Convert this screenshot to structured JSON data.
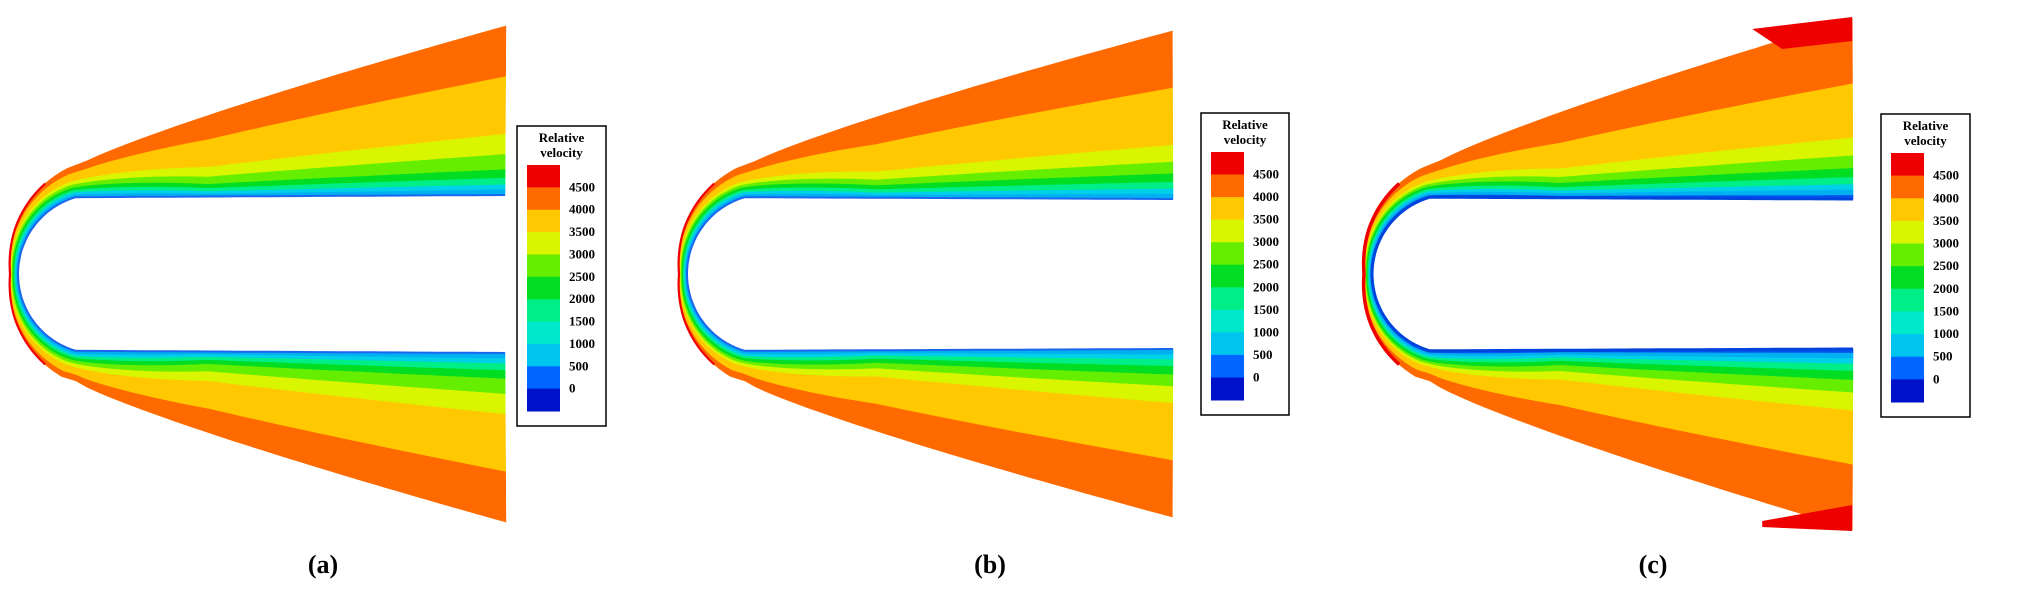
{
  "panels": [
    {
      "label": "(a)",
      "variant": "a"
    },
    {
      "label": "(b)",
      "variant": "b"
    },
    {
      "label": "(c)",
      "variant": "c"
    }
  ],
  "legend": {
    "title_line1": "Relative",
    "title_line2": "velocity",
    "ticks": [
      "4500",
      "4000",
      "3500",
      "3000",
      "2500",
      "2000",
      "1500",
      "1000",
      "500",
      "0"
    ],
    "colors": [
      "#ee0000",
      "#ff6a00",
      "#ffc800",
      "#d9f500",
      "#66ee00",
      "#00dd22",
      "#00ee88",
      "#00e8cc",
      "#00c4f0",
      "#0066ff",
      "#0011cc"
    ]
  },
  "bands": {
    "red": "#ee0000",
    "orange": "#ff6a00",
    "amber": "#ffc800",
    "yellow": "#d9f500",
    "lime": "#66ee00",
    "green": "#00dd22",
    "mint": "#00ee88",
    "cyan": "#00d0e8",
    "sky": "#00b0f0",
    "blue": "#0055ee"
  }
}
